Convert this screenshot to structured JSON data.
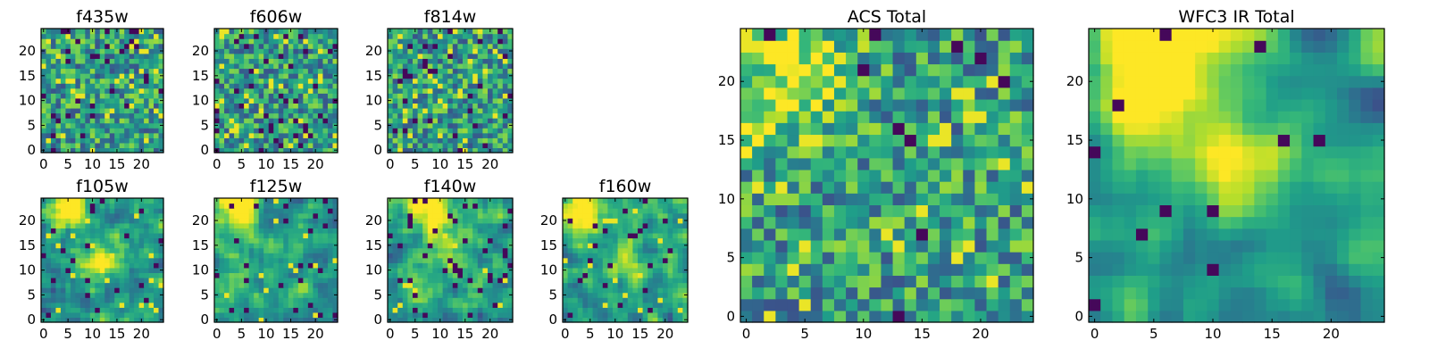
{
  "figure": {
    "type": "heatmap grid",
    "colormap": "viridis"
  },
  "chart_data": [
    {
      "type": "heatmap",
      "title": "f435w",
      "grid": [
        25,
        25
      ],
      "xticks": [
        "0",
        "5",
        "10",
        "15",
        "20"
      ],
      "yticks": [
        "0",
        "5",
        "10",
        "15",
        "20"
      ],
      "xlim": [
        0,
        24
      ],
      "ylim": [
        0,
        24
      ],
      "seed": 11,
      "smooth": 0,
      "dark": 0.05,
      "bright": 0.05,
      "blobs": []
    },
    {
      "type": "heatmap",
      "title": "f606w",
      "grid": [
        25,
        25
      ],
      "xticks": [
        "0",
        "5",
        "10",
        "15",
        "20"
      ],
      "yticks": [
        "0",
        "5",
        "10",
        "15",
        "20"
      ],
      "xlim": [
        0,
        24
      ],
      "ylim": [
        0,
        24
      ],
      "seed": 23,
      "smooth": 0,
      "dark": 0.06,
      "bright": 0.06,
      "blobs": []
    },
    {
      "type": "heatmap",
      "title": "f814w",
      "grid": [
        25,
        25
      ],
      "xticks": [
        "0",
        "5",
        "10",
        "15",
        "20"
      ],
      "yticks": [
        "0",
        "5",
        "10",
        "15",
        "20"
      ],
      "xlim": [
        0,
        24
      ],
      "ylim": [
        0,
        24
      ],
      "seed": 37,
      "smooth": 0,
      "dark": 0.05,
      "bright": 0.06,
      "blobs": []
    },
    {
      "type": "heatmap",
      "title": "f105w",
      "grid": [
        25,
        25
      ],
      "xticks": [
        "0",
        "5",
        "10",
        "15",
        "20"
      ],
      "yticks": [
        "0",
        "5",
        "10",
        "15",
        "20"
      ],
      "xlim": [
        0,
        24
      ],
      "ylim": [
        0,
        24
      ],
      "seed": 41,
      "smooth": 1,
      "dark": 0.04,
      "bright": 0.02,
      "blobs": [
        [
          5,
          23,
          3,
          0.6
        ],
        [
          12,
          12,
          3,
          0.5
        ]
      ]
    },
    {
      "type": "heatmap",
      "title": "f125w",
      "grid": [
        25,
        25
      ],
      "xticks": [
        "0",
        "5",
        "10",
        "15",
        "20"
      ],
      "yticks": [
        "0",
        "5",
        "10",
        "15",
        "20"
      ],
      "xlim": [
        0,
        24
      ],
      "ylim": [
        0,
        24
      ],
      "seed": 53,
      "smooth": 1,
      "dark": 0.05,
      "bright": 0.02,
      "blobs": [
        [
          4,
          23,
          3,
          0.6
        ]
      ]
    },
    {
      "type": "heatmap",
      "title": "f140w",
      "grid": [
        25,
        25
      ],
      "xticks": [
        "0",
        "5",
        "10",
        "15",
        "20"
      ],
      "yticks": [
        "0",
        "5",
        "10",
        "15",
        "20"
      ],
      "xlim": [
        0,
        24
      ],
      "ylim": [
        0,
        24
      ],
      "seed": 67,
      "smooth": 1,
      "dark": 0.05,
      "bright": 0.02,
      "blobs": [
        [
          7,
          23,
          2.5,
          0.6
        ],
        [
          10,
          16,
          4,
          0.3
        ]
      ]
    },
    {
      "type": "heatmap",
      "title": "f160w",
      "grid": [
        25,
        25
      ],
      "xticks": [
        "0",
        "5",
        "10",
        "15",
        "20"
      ],
      "yticks": [
        "0",
        "5",
        "10",
        "15",
        "20"
      ],
      "xlim": [
        0,
        24
      ],
      "ylim": [
        0,
        24
      ],
      "seed": 79,
      "smooth": 1,
      "dark": 0.05,
      "bright": 0.02,
      "blobs": [
        [
          3,
          22,
          3,
          0.6
        ],
        [
          12,
          12,
          3,
          0.3
        ]
      ]
    },
    {
      "type": "heatmap",
      "title": "ACS Total",
      "grid": [
        25,
        25
      ],
      "xticks": [
        "0",
        "5",
        "10",
        "15",
        "20"
      ],
      "yticks": [
        "0",
        "5",
        "10",
        "15",
        "20"
      ],
      "xlim": [
        0,
        24
      ],
      "ylim": [
        0,
        24
      ],
      "seed": 97,
      "smooth": 0,
      "dark": 0.02,
      "bright": 0.03,
      "blobs": [
        [
          5,
          21,
          3,
          0.45
        ],
        [
          0,
          16,
          2,
          0.35
        ]
      ]
    },
    {
      "type": "heatmap",
      "title": "WFC3 IR Total",
      "grid": [
        25,
        25
      ],
      "xticks": [
        "0",
        "5",
        "10",
        "15",
        "20"
      ],
      "yticks": [
        "0",
        "5",
        "10",
        "15",
        "20"
      ],
      "xlim": [
        0,
        24
      ],
      "ylim": [
        0,
        24
      ],
      "seed": 113,
      "smooth": 2,
      "dark": 0.02,
      "bright": 0.0,
      "blobs": [
        [
          6,
          23,
          4,
          0.8
        ],
        [
          12,
          13,
          3,
          0.4
        ],
        [
          3,
          16,
          3,
          0.3
        ]
      ]
    }
  ]
}
